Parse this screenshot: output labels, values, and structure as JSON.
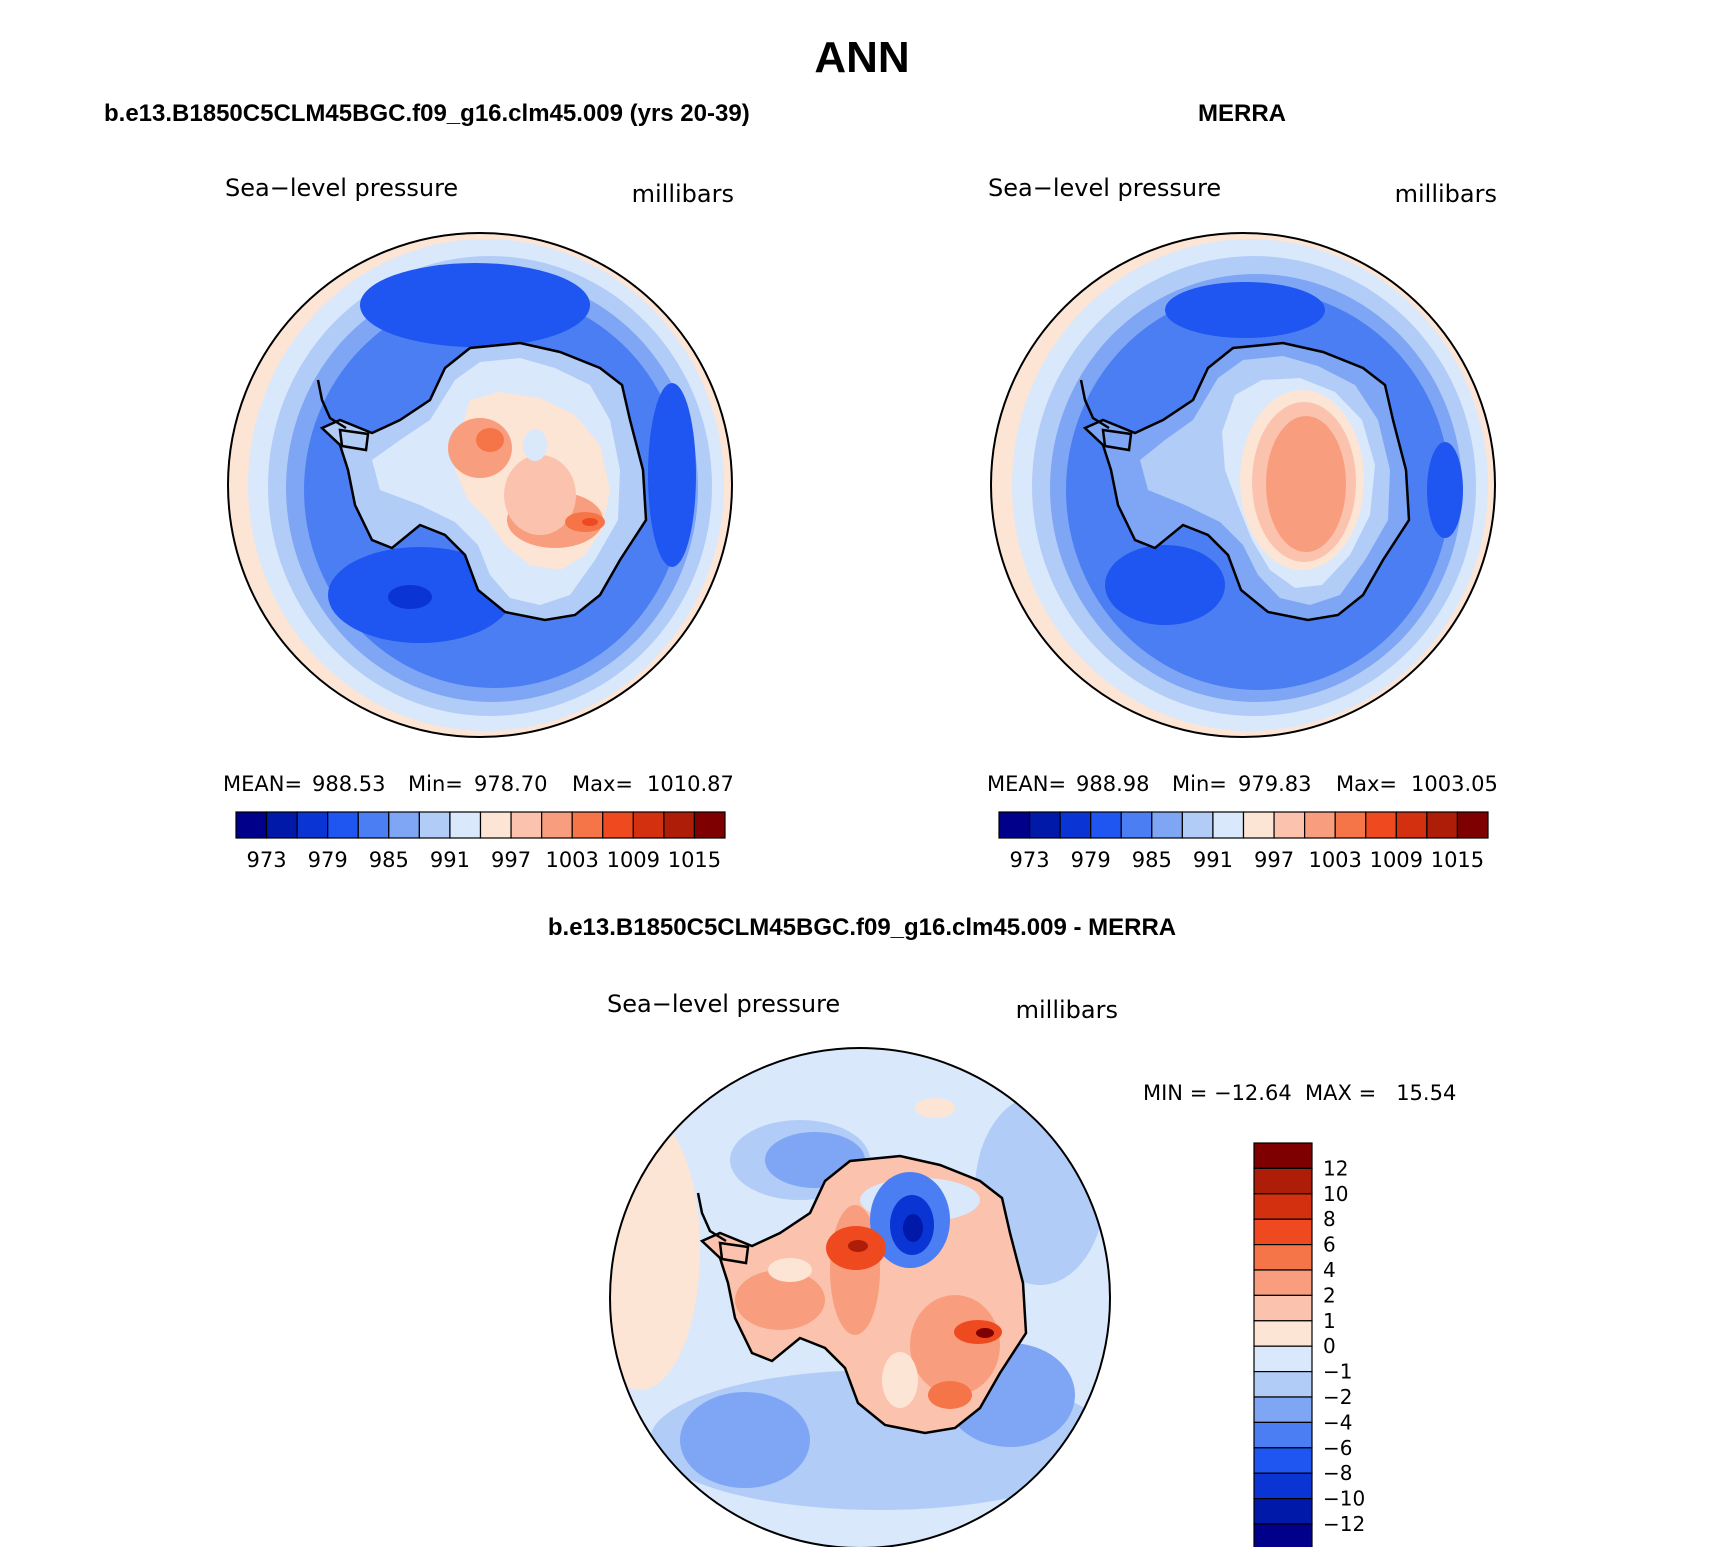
{
  "main_title": "ANN",
  "panels": [
    {
      "id": "model",
      "title": "b.e13.B1850C5CLM45BGC.f09_g16.clm45.009 (yrs 20-39)",
      "variable": "Sea−level pressure",
      "units": "millibars",
      "stats": {
        "mean_label": "MEAN=",
        "mean": "988.53",
        "min_label": "Min=",
        "min": "978.70",
        "max_label": "Max=",
        "max": "1010.87"
      },
      "colorbar_labels": [
        "973",
        "979",
        "985",
        "991",
        "997",
        "1003",
        "1009",
        "1015"
      ]
    },
    {
      "id": "obs",
      "title": "MERRA",
      "variable": "Sea−level pressure",
      "units": "millibars",
      "stats": {
        "mean_label": "MEAN=",
        "mean": "988.98",
        "min_label": "Min=",
        "min": "979.83",
        "max_label": "Max=",
        "max": "1003.05"
      },
      "colorbar_labels": [
        "973",
        "979",
        "985",
        "991",
        "997",
        "1003",
        "1009",
        "1015"
      ]
    }
  ],
  "diff_panel": {
    "title": "b.e13.B1850C5CLM45BGC.f09_g16.clm45.009 - MERRA",
    "variable": "Sea−level pressure",
    "units": "millibars",
    "range_text": "MIN = −12.64  MAX =   15.54",
    "colorbar_labels": [
      "12",
      "10",
      "8",
      "6",
      "4",
      "2",
      "1",
      "0",
      "−1",
      "−2",
      "−4",
      "−6",
      "−8",
      "−10",
      "−12"
    ]
  },
  "colors": {
    "abs_scale": [
      "#00008a",
      "#0019a8",
      "#0a34d4",
      "#1f55f0",
      "#4a7ef2",
      "#7fa6f4",
      "#b2ccf8",
      "#d9e8fb",
      "#fde5d5",
      "#fbc3ad",
      "#f89e7e",
      "#f57448",
      "#ef4a1f",
      "#d2300f",
      "#ae1d07",
      "#7e0000"
    ],
    "diff_scale_top_to_bottom": [
      "#7e0000",
      "#ae1d07",
      "#d2300f",
      "#ef4a1f",
      "#f57448",
      "#f89e7e",
      "#fbc3ad",
      "#fde5d5",
      "#d9e8fb",
      "#b2ccf8",
      "#7fa6f4",
      "#4a7ef2",
      "#1f55f0",
      "#0a34d4",
      "#0019a8",
      "#00008a"
    ]
  }
}
